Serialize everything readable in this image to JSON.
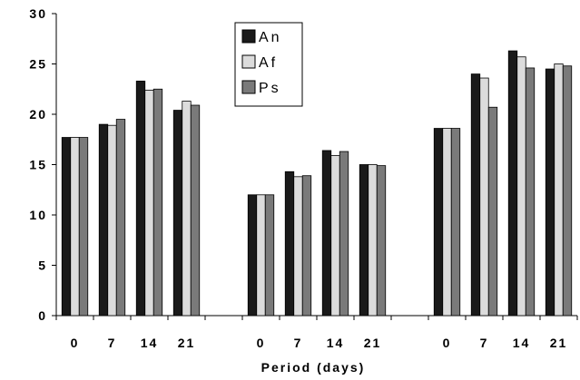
{
  "chart_data": {
    "type": "bar",
    "title": "",
    "xlabel": "Period (days)",
    "ylabel": "",
    "ylim": [
      0,
      30
    ],
    "yticks": [
      "0",
      "5",
      "10",
      "15",
      "20",
      "25",
      "30"
    ],
    "grid": false,
    "legend_position": "top-center",
    "groups": [
      {
        "categories": [
          "0",
          "7",
          "14",
          "21"
        ]
      },
      {
        "categories": [
          "0",
          "7",
          "14",
          "21"
        ]
      },
      {
        "categories": [
          "0",
          "7",
          "14",
          "21"
        ]
      }
    ],
    "series": [
      {
        "name": "An",
        "color": "#1a1a1a",
        "values": [
          17.7,
          19.0,
          23.3,
          20.4,
          12.0,
          14.3,
          16.4,
          15.0,
          18.6,
          24.0,
          26.3,
          24.5
        ]
      },
      {
        "name": "Af",
        "color": "#dcdcdc",
        "values": [
          17.7,
          18.9,
          22.4,
          21.3,
          12.0,
          13.8,
          15.9,
          15.0,
          18.6,
          23.6,
          25.7,
          25.0
        ]
      },
      {
        "name": "Ps",
        "color": "#7a7a7a",
        "values": [
          17.7,
          19.5,
          22.5,
          20.9,
          12.0,
          13.9,
          16.3,
          14.9,
          18.6,
          20.7,
          24.6,
          24.8
        ]
      }
    ]
  }
}
